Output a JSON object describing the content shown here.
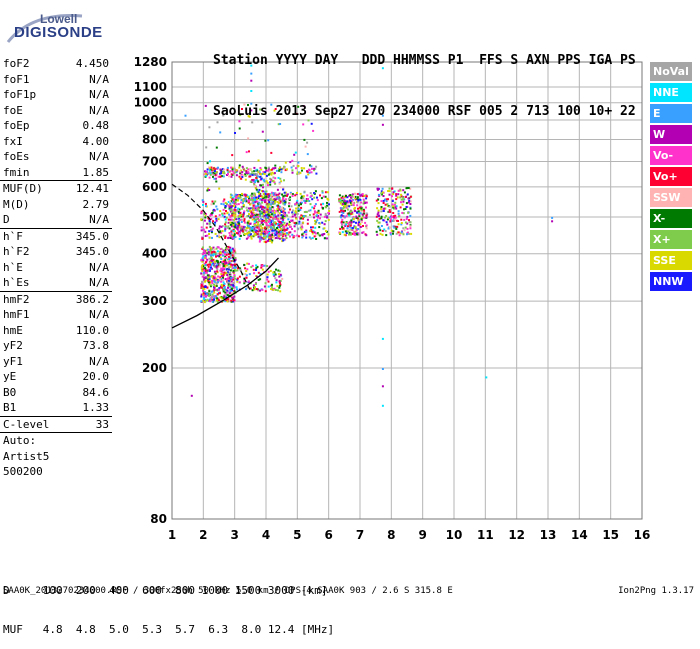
{
  "logo": {
    "top": "Lowell",
    "bottom": "DIGISONDE"
  },
  "header": {
    "line1": "Station YYYY DAY   DDD HHMMSS P1  FFS S AXN PPS IGA PS",
    "line2": "SaoLuis 2013 Sep27 270 234000 RSF 005 2 713 100 10+ 22"
  },
  "params": [
    [
      {
        "label": "foF2",
        "value": "4.450"
      },
      {
        "label": "foF1",
        "value": "N/A"
      },
      {
        "label": "foF1p",
        "value": "N/A"
      },
      {
        "label": "foE",
        "value": "N/A"
      },
      {
        "label": "foEp",
        "value": "0.48"
      },
      {
        "label": "fxI",
        "value": "4.00"
      },
      {
        "label": "foEs",
        "value": "N/A"
      },
      {
        "label": "fmin",
        "value": "1.85"
      }
    ],
    [
      {
        "label": "MUF(D)",
        "value": "12.41"
      },
      {
        "label": "M(D)",
        "value": "2.79"
      },
      {
        "label": "D",
        "value": "N/A"
      }
    ],
    [
      {
        "label": "h`F",
        "value": "345.0"
      },
      {
        "label": "h`F2",
        "value": "345.0"
      },
      {
        "label": "h`E",
        "value": "N/A"
      },
      {
        "label": "h`Es",
        "value": "N/A"
      }
    ],
    [
      {
        "label": "hmF2",
        "value": "386.2"
      },
      {
        "label": "hmF1",
        "value": "N/A"
      },
      {
        "label": "hmE",
        "value": "110.0"
      },
      {
        "label": "yF2",
        "value": "73.8"
      },
      {
        "label": "yF1",
        "value": "N/A"
      },
      {
        "label": "yE",
        "value": "20.0"
      },
      {
        "label": "B0",
        "value": "84.6"
      },
      {
        "label": "B1",
        "value": "1.33"
      }
    ],
    [
      {
        "label": "C-level",
        "value": "33"
      }
    ],
    [
      {
        "label": "Auto:",
        "value": ""
      },
      {
        "label": "Artist5",
        "value": ""
      },
      {
        "label": "500200",
        "value": ""
      }
    ]
  ],
  "legend": [
    {
      "label": "NoVal",
      "color": "#a6a6a6"
    },
    {
      "label": "NNE",
      "color": "#00e5ff"
    },
    {
      "label": "E",
      "color": "#3aa0ff"
    },
    {
      "label": "W",
      "color": "#b300b3"
    },
    {
      "label": "Vo-",
      "color": "#ff33cc"
    },
    {
      "label": "Vo+",
      "color": "#ff0033"
    },
    {
      "label": "SSW",
      "color": "#ffb3b3"
    },
    {
      "label": "X-",
      "color": "#007a00"
    },
    {
      "label": "X+",
      "color": "#7fcc4c"
    },
    {
      "label": "SSE",
      "color": "#d9d900"
    },
    {
      "label": "NNW",
      "color": "#1a1aff"
    }
  ],
  "chart_data": {
    "type": "scatter",
    "title": "",
    "xlabel": "",
    "ylabel": "",
    "xlim": [
      1,
      16
    ],
    "ylim": [
      80,
      1280
    ],
    "y_scale": "log",
    "x_ticks": [
      1,
      2,
      3,
      4,
      5,
      6,
      7,
      8,
      9,
      10,
      11,
      12,
      13,
      14,
      15,
      16
    ],
    "y_ticks": [
      80,
      200,
      300,
      400,
      500,
      600,
      700,
      800,
      900,
      1000,
      1100,
      1280
    ],
    "grid": true,
    "clusters": [
      {
        "x": [
          1.9,
          3.0
        ],
        "y": [
          300,
          420
        ],
        "n": 600
      },
      {
        "x": [
          2.8,
          4.6
        ],
        "y": [
          440,
          580
        ],
        "n": 700
      },
      {
        "x": [
          1.9,
          3.0
        ],
        "y": [
          440,
          560
        ],
        "n": 150
      },
      {
        "x": [
          3.0,
          4.5
        ],
        "y": [
          320,
          380
        ],
        "n": 120
      },
      {
        "x": [
          2.0,
          4.0
        ],
        "y": [
          640,
          680
        ],
        "n": 150
      },
      {
        "x": [
          4.0,
          5.6
        ],
        "y": [
          650,
          690
        ],
        "n": 60
      },
      {
        "x": [
          3.5,
          4.6
        ],
        "y": [
          430,
          640
        ],
        "n": 250
      },
      {
        "x": [
          4.6,
          6.0
        ],
        "y": [
          440,
          590
        ],
        "n": 250
      },
      {
        "x": [
          6.3,
          7.2
        ],
        "y": [
          450,
          580
        ],
        "n": 280
      },
      {
        "x": [
          7.5,
          8.6
        ],
        "y": [
          450,
          600
        ],
        "n": 220
      },
      {
        "x": [
          2.0,
          5.5
        ],
        "y": [
          550,
          1000
        ],
        "n": 90
      }
    ],
    "isolated_points": [
      {
        "x": 3.5,
        "y": 1260
      },
      {
        "x": 3.5,
        "y": 1200
      },
      {
        "x": 3.5,
        "y": 1150
      },
      {
        "x": 3.5,
        "y": 1080
      },
      {
        "x": 3.5,
        "y": 1000
      },
      {
        "x": 3.5,
        "y": 960
      },
      {
        "x": 7.7,
        "y": 1240
      },
      {
        "x": 7.7,
        "y": 930
      },
      {
        "x": 7.7,
        "y": 880
      },
      {
        "x": 7.7,
        "y": 240
      },
      {
        "x": 7.7,
        "y": 200
      },
      {
        "x": 7.7,
        "y": 180
      },
      {
        "x": 7.7,
        "y": 160
      },
      {
        "x": 1.4,
        "y": 930
      },
      {
        "x": 1.6,
        "y": 170
      },
      {
        "x": 11.0,
        "y": 190
      },
      {
        "x": 13.1,
        "y": 500
      },
      {
        "x": 13.1,
        "y": 490
      }
    ],
    "profile_line": [
      {
        "x": 1.0,
        "y": 255
      },
      {
        "x": 1.8,
        "y": 275
      },
      {
        "x": 2.6,
        "y": 300
      },
      {
        "x": 3.4,
        "y": 330
      },
      {
        "x": 4.0,
        "y": 360
      },
      {
        "x": 4.4,
        "y": 390
      }
    ],
    "profile_dashed": [
      {
        "x": 1.0,
        "y": 610
      },
      {
        "x": 1.5,
        "y": 570
      },
      {
        "x": 2.0,
        "y": 520
      },
      {
        "x": 2.4,
        "y": 470
      },
      {
        "x": 2.8,
        "y": 410
      },
      {
        "x": 3.2,
        "y": 360
      },
      {
        "x": 3.5,
        "y": 320
      }
    ]
  },
  "dmuf": {
    "line1": "D     100  200  400  600  800 1000 1500 3000 [km]",
    "line2": "MUF   4.8  4.8  5.0  5.3  5.7  6.3  8.0 12.4 [MHz]"
  },
  "footer": {
    "left": "SAA0K_2013270234000.RSF / 300fx256h 50 kHz 5.0 km / DPS-4 SAA0K 903 / 2.6 S 315.8 E",
    "right": "Ion2Png 1.3.17"
  }
}
